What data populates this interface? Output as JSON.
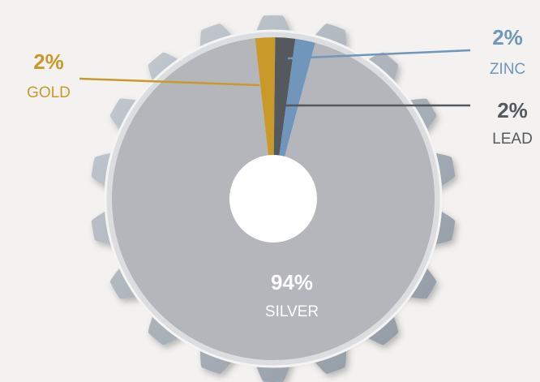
{
  "chart_data": {
    "type": "donut",
    "categories": [
      "GOLD",
      "LEAD",
      "ZINC",
      "SILVER"
    ],
    "values": [
      2,
      2,
      2,
      94
    ],
    "value_labels": [
      "2%",
      "2%",
      "2%",
      "94%"
    ],
    "colors": [
      "#c99a2a",
      "#55595e",
      "#7096bb",
      "#b5b6bb"
    ]
  }
}
